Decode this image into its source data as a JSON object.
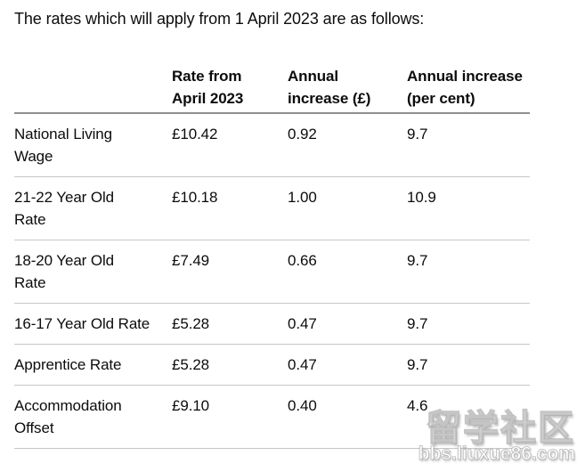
{
  "page": {
    "intro_text": "The rates which will apply from 1 April 2023 are as follows:"
  },
  "table": {
    "columns": [
      "",
      [
        "Rate from",
        "April 2023"
      ],
      [
        "Annual",
        "increase (£)"
      ],
      [
        "Annual increase",
        "(per cent)"
      ]
    ],
    "rows": [
      {
        "label": [
          "National Living",
          "Wage"
        ],
        "rate_from_april_2023": "£10.42",
        "annual_increase_gbp": "0.92",
        "annual_increase_percent": "9.7"
      },
      {
        "label": [
          "21-22 Year Old",
          "Rate"
        ],
        "rate_from_april_2023": "£10.18",
        "annual_increase_gbp": "1.00",
        "annual_increase_percent": "10.9"
      },
      {
        "label": [
          "18-20 Year Old",
          "Rate"
        ],
        "rate_from_april_2023": "£7.49",
        "annual_increase_gbp": "0.66",
        "annual_increase_percent": "9.7"
      },
      {
        "label": "16-17 Year Old Rate",
        "rate_from_april_2023": "£5.28",
        "annual_increase_gbp": "0.47",
        "annual_increase_percent": "9.7"
      },
      {
        "label": "Apprentice Rate",
        "rate_from_april_2023": "£5.28",
        "annual_increase_gbp": "0.47",
        "annual_increase_percent": "9.7"
      },
      {
        "label": [
          "Accommodation",
          "Offset"
        ],
        "rate_from_april_2023": "£9.10",
        "annual_increase_gbp": "0.40",
        "annual_increase_percent": "4.6"
      }
    ]
  },
  "watermark": {
    "title": "留学社区",
    "url": "bbs.liuxue86.com"
  },
  "colors": {
    "text": "#0b0c0c",
    "header_border": "#8f8f8f",
    "row_border": "#c6c6c6",
    "background": "#ffffff",
    "watermark_fill": "#ffffff"
  }
}
